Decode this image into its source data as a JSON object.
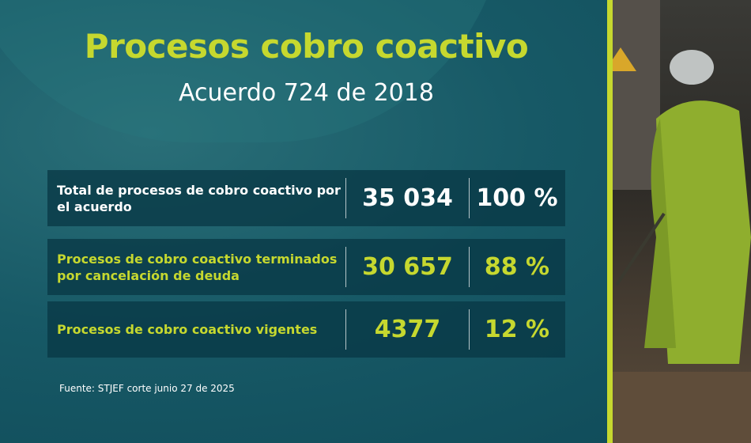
{
  "header": {
    "title": "Procesos cobro coactivo",
    "subtitle": "Acuerdo 724 de 2018"
  },
  "table": {
    "rows": [
      [
        "Total de procesos de cobro coactivo por el acuerdo",
        "35 034",
        "100 %"
      ],
      [
        "Procesos de cobro coactivo terminados por cancelación de deuda",
        "30 657",
        "88 %"
      ],
      [
        "Procesos de cobro coactivo vigentes",
        "4377",
        "12 %"
      ]
    ]
  },
  "footer": {
    "source": "Fuente: STJEF corte junio 27 de 2025"
  }
}
